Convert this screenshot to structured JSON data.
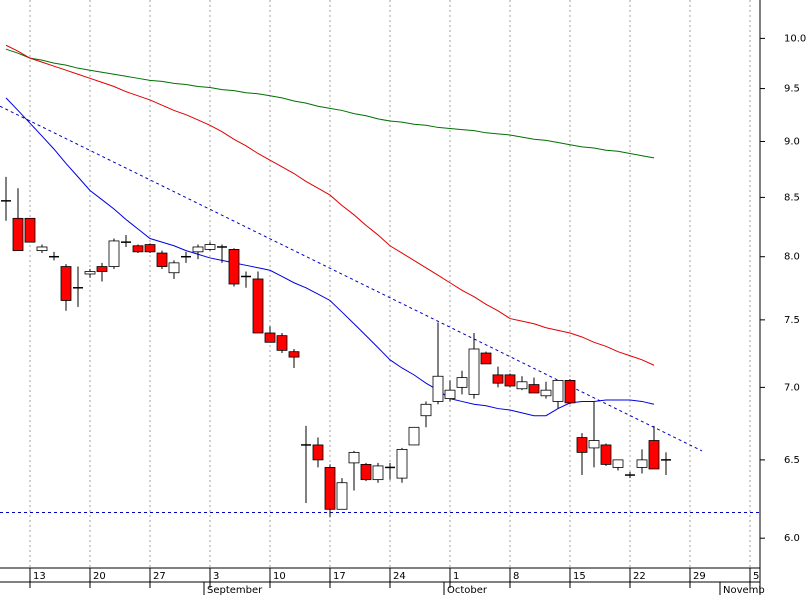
{
  "chart_data": {
    "type": "candlestick",
    "categories": [
      null,
      null,
      "13",
      null,
      null,
      null,
      null,
      "20",
      null,
      null,
      null,
      null,
      "27",
      null,
      null,
      null,
      null,
      "3",
      null,
      null,
      null,
      null,
      "10",
      null,
      null,
      null,
      null,
      "17",
      null,
      null,
      null,
      null,
      "24",
      null,
      null,
      null,
      null,
      "1",
      null,
      null,
      null,
      null,
      "8",
      null,
      null,
      null,
      null,
      "15",
      null,
      null,
      null,
      null,
      "22",
      null,
      null,
      null,
      null,
      "29",
      null,
      null,
      null,
      null,
      "5"
    ],
    "months": [
      null,
      null,
      null,
      null,
      null,
      null,
      null,
      null,
      null,
      null,
      null,
      null,
      null,
      null,
      null,
      null,
      null,
      "September",
      null,
      null,
      null,
      null,
      null,
      null,
      null,
      null,
      null,
      null,
      null,
      null,
      null,
      null,
      null,
      null,
      null,
      null,
      null,
      "October",
      null,
      null,
      null,
      null,
      null,
      null,
      null,
      null,
      null,
      null,
      null,
      null,
      null,
      null,
      null,
      null,
      null,
      null,
      null,
      null,
      null,
      null,
      "Novemb",
      null,
      null
    ],
    "open": [
      8.47,
      8.32,
      8.32,
      8.05,
      8.0,
      7.92,
      7.75,
      7.86,
      7.92,
      7.92,
      8.12,
      8.09,
      8.1,
      8.03,
      7.87,
      8.0,
      8.04,
      8.06,
      8.08,
      8.06,
      7.84,
      7.82,
      7.4,
      7.38,
      7.26,
      6.6,
      6.6,
      6.45,
      6.18,
      6.48,
      6.47,
      6.37,
      6.45,
      6.38,
      6.6,
      6.8,
      6.9,
      6.92,
      7.0,
      6.95,
      7.25,
      7.09,
      7.09,
      6.99,
      7.02,
      6.94,
      6.9,
      7.05,
      6.65,
      6.58,
      6.6,
      6.45,
      6.4,
      6.45,
      6.63,
      6.5,
      null,
      null,
      null,
      null,
      null,
      null,
      null
    ],
    "high": [
      8.68,
      8.58,
      8.32,
      8.1,
      8.04,
      7.94,
      7.92,
      7.9,
      7.95,
      8.15,
      8.18,
      8.1,
      8.11,
      8.05,
      7.97,
      8.04,
      8.1,
      8.12,
      8.1,
      8.07,
      7.88,
      7.88,
      7.45,
      7.4,
      7.28,
      6.73,
      6.65,
      6.47,
      6.38,
      6.56,
      6.48,
      6.48,
      6.48,
      6.58,
      6.72,
      6.9,
      7.48,
      7.05,
      7.12,
      7.4,
      7.26,
      7.15,
      7.1,
      7.08,
      7.07,
      7.04,
      7.05,
      7.06,
      6.68,
      6.9,
      6.61,
      6.5,
      6.42,
      6.57,
      6.73,
      6.55,
      null,
      null,
      null,
      null,
      null,
      null,
      null
    ],
    "low": [
      8.3,
      8.05,
      8.12,
      8.03,
      7.97,
      7.57,
      7.6,
      7.83,
      7.8,
      7.9,
      8.08,
      8.03,
      8.03,
      7.9,
      7.82,
      7.95,
      7.98,
      8.05,
      7.95,
      7.76,
      7.75,
      7.4,
      7.33,
      7.25,
      7.14,
      6.22,
      6.45,
      6.13,
      6.18,
      6.3,
      6.36,
      6.35,
      6.37,
      6.35,
      6.6,
      6.72,
      6.88,
      6.9,
      6.95,
      6.92,
      7.17,
      7.0,
      7.0,
      6.98,
      6.96,
      6.92,
      6.85,
      6.88,
      6.4,
      6.45,
      6.46,
      6.43,
      6.38,
      6.41,
      6.44,
      6.4,
      null,
      null,
      null,
      null,
      null,
      null,
      null
    ],
    "close": [
      8.47,
      8.05,
      8.12,
      8.08,
      8.0,
      7.65,
      7.75,
      7.88,
      7.88,
      8.13,
      8.12,
      8.04,
      8.04,
      7.92,
      7.95,
      8.0,
      8.08,
      8.1,
      8.08,
      7.78,
      7.84,
      7.4,
      7.33,
      7.27,
      7.22,
      6.6,
      6.5,
      6.18,
      6.35,
      6.55,
      6.37,
      6.46,
      6.45,
      6.57,
      6.72,
      6.88,
      7.08,
      6.98,
      7.07,
      7.28,
      7.17,
      7.03,
      7.01,
      7.04,
      6.96,
      6.98,
      7.05,
      6.89,
      6.55,
      6.63,
      6.47,
      6.5,
      6.4,
      6.5,
      6.44,
      6.5,
      null,
      null,
      null,
      null,
      null,
      null,
      null
    ],
    "up_color": "#ffffff",
    "down_color": "#ff0000",
    "series": [
      {
        "color": "#007000",
        "values": [
          9.89,
          9.85,
          9.8,
          9.78,
          9.75,
          9.73,
          9.7,
          9.68,
          9.66,
          9.64,
          9.62,
          9.6,
          9.58,
          9.57,
          9.55,
          9.54,
          9.52,
          9.51,
          9.49,
          9.48,
          9.46,
          9.45,
          9.43,
          9.41,
          9.38,
          9.36,
          9.33,
          9.31,
          9.29,
          9.26,
          9.24,
          9.21,
          9.19,
          9.18,
          9.16,
          9.15,
          9.13,
          9.12,
          9.11,
          9.1,
          9.08,
          9.07,
          9.06,
          9.04,
          9.02,
          9.01,
          8.99,
          8.97,
          8.95,
          8.94,
          8.92,
          8.91,
          8.89,
          8.87,
          8.85,
          null,
          null,
          null,
          null,
          null,
          null,
          null,
          null
        ]
      },
      {
        "color": "#e00000",
        "values": [
          9.93,
          9.87,
          9.8,
          9.76,
          9.72,
          9.68,
          9.64,
          9.6,
          9.56,
          9.52,
          9.47,
          9.43,
          9.39,
          9.34,
          9.29,
          9.25,
          9.2,
          9.15,
          9.09,
          9.02,
          8.96,
          8.89,
          8.83,
          8.77,
          8.71,
          8.64,
          8.58,
          8.52,
          8.43,
          8.35,
          8.26,
          8.18,
          8.09,
          8.03,
          7.97,
          7.91,
          7.85,
          7.79,
          7.73,
          7.68,
          7.62,
          7.57,
          7.51,
          7.49,
          7.47,
          7.44,
          7.42,
          7.4,
          7.37,
          7.33,
          7.3,
          7.26,
          7.23,
          7.2,
          7.16,
          null,
          null,
          null,
          null,
          null,
          null,
          null,
          null
        ]
      },
      {
        "color": "#0000e0",
        "values": [
          9.41,
          9.29,
          9.17,
          9.05,
          8.93,
          8.8,
          8.68,
          8.56,
          8.48,
          8.4,
          8.31,
          8.23,
          8.15,
          8.12,
          8.09,
          8.05,
          8.02,
          7.99,
          7.97,
          7.95,
          7.93,
          7.91,
          7.89,
          7.84,
          7.79,
          7.75,
          7.7,
          7.65,
          7.56,
          7.47,
          7.38,
          7.29,
          7.2,
          7.14,
          7.09,
          7.03,
          6.98,
          6.92,
          6.9,
          6.88,
          6.87,
          6.85,
          6.84,
          6.82,
          6.8,
          6.8,
          6.85,
          6.89,
          6.9,
          6.9,
          6.91,
          6.91,
          6.91,
          6.9,
          6.88,
          null,
          null,
          null,
          null,
          null,
          null,
          null,
          null
        ]
      }
    ],
    "trendline": [
      9.33,
      6.56
    ],
    "trendline_color": "#0000c0",
    "support": 6.16,
    "support_color": "#0000c0",
    "log_scale": true,
    "grid": true,
    "ylim": [
      5.82,
      10.4
    ],
    "yticks": [
      {
        "value": 6.0,
        "label": "6.0"
      },
      6.5,
      {
        "value": 7.0,
        "label": "7.0"
      },
      7.5,
      {
        "value": 8.0,
        "label": "8.0"
      },
      8.5,
      {
        "value": 9.0,
        "label": "9.0"
      },
      9.5,
      {
        "value": 10.0,
        "label": "10.0"
      }
    ]
  }
}
